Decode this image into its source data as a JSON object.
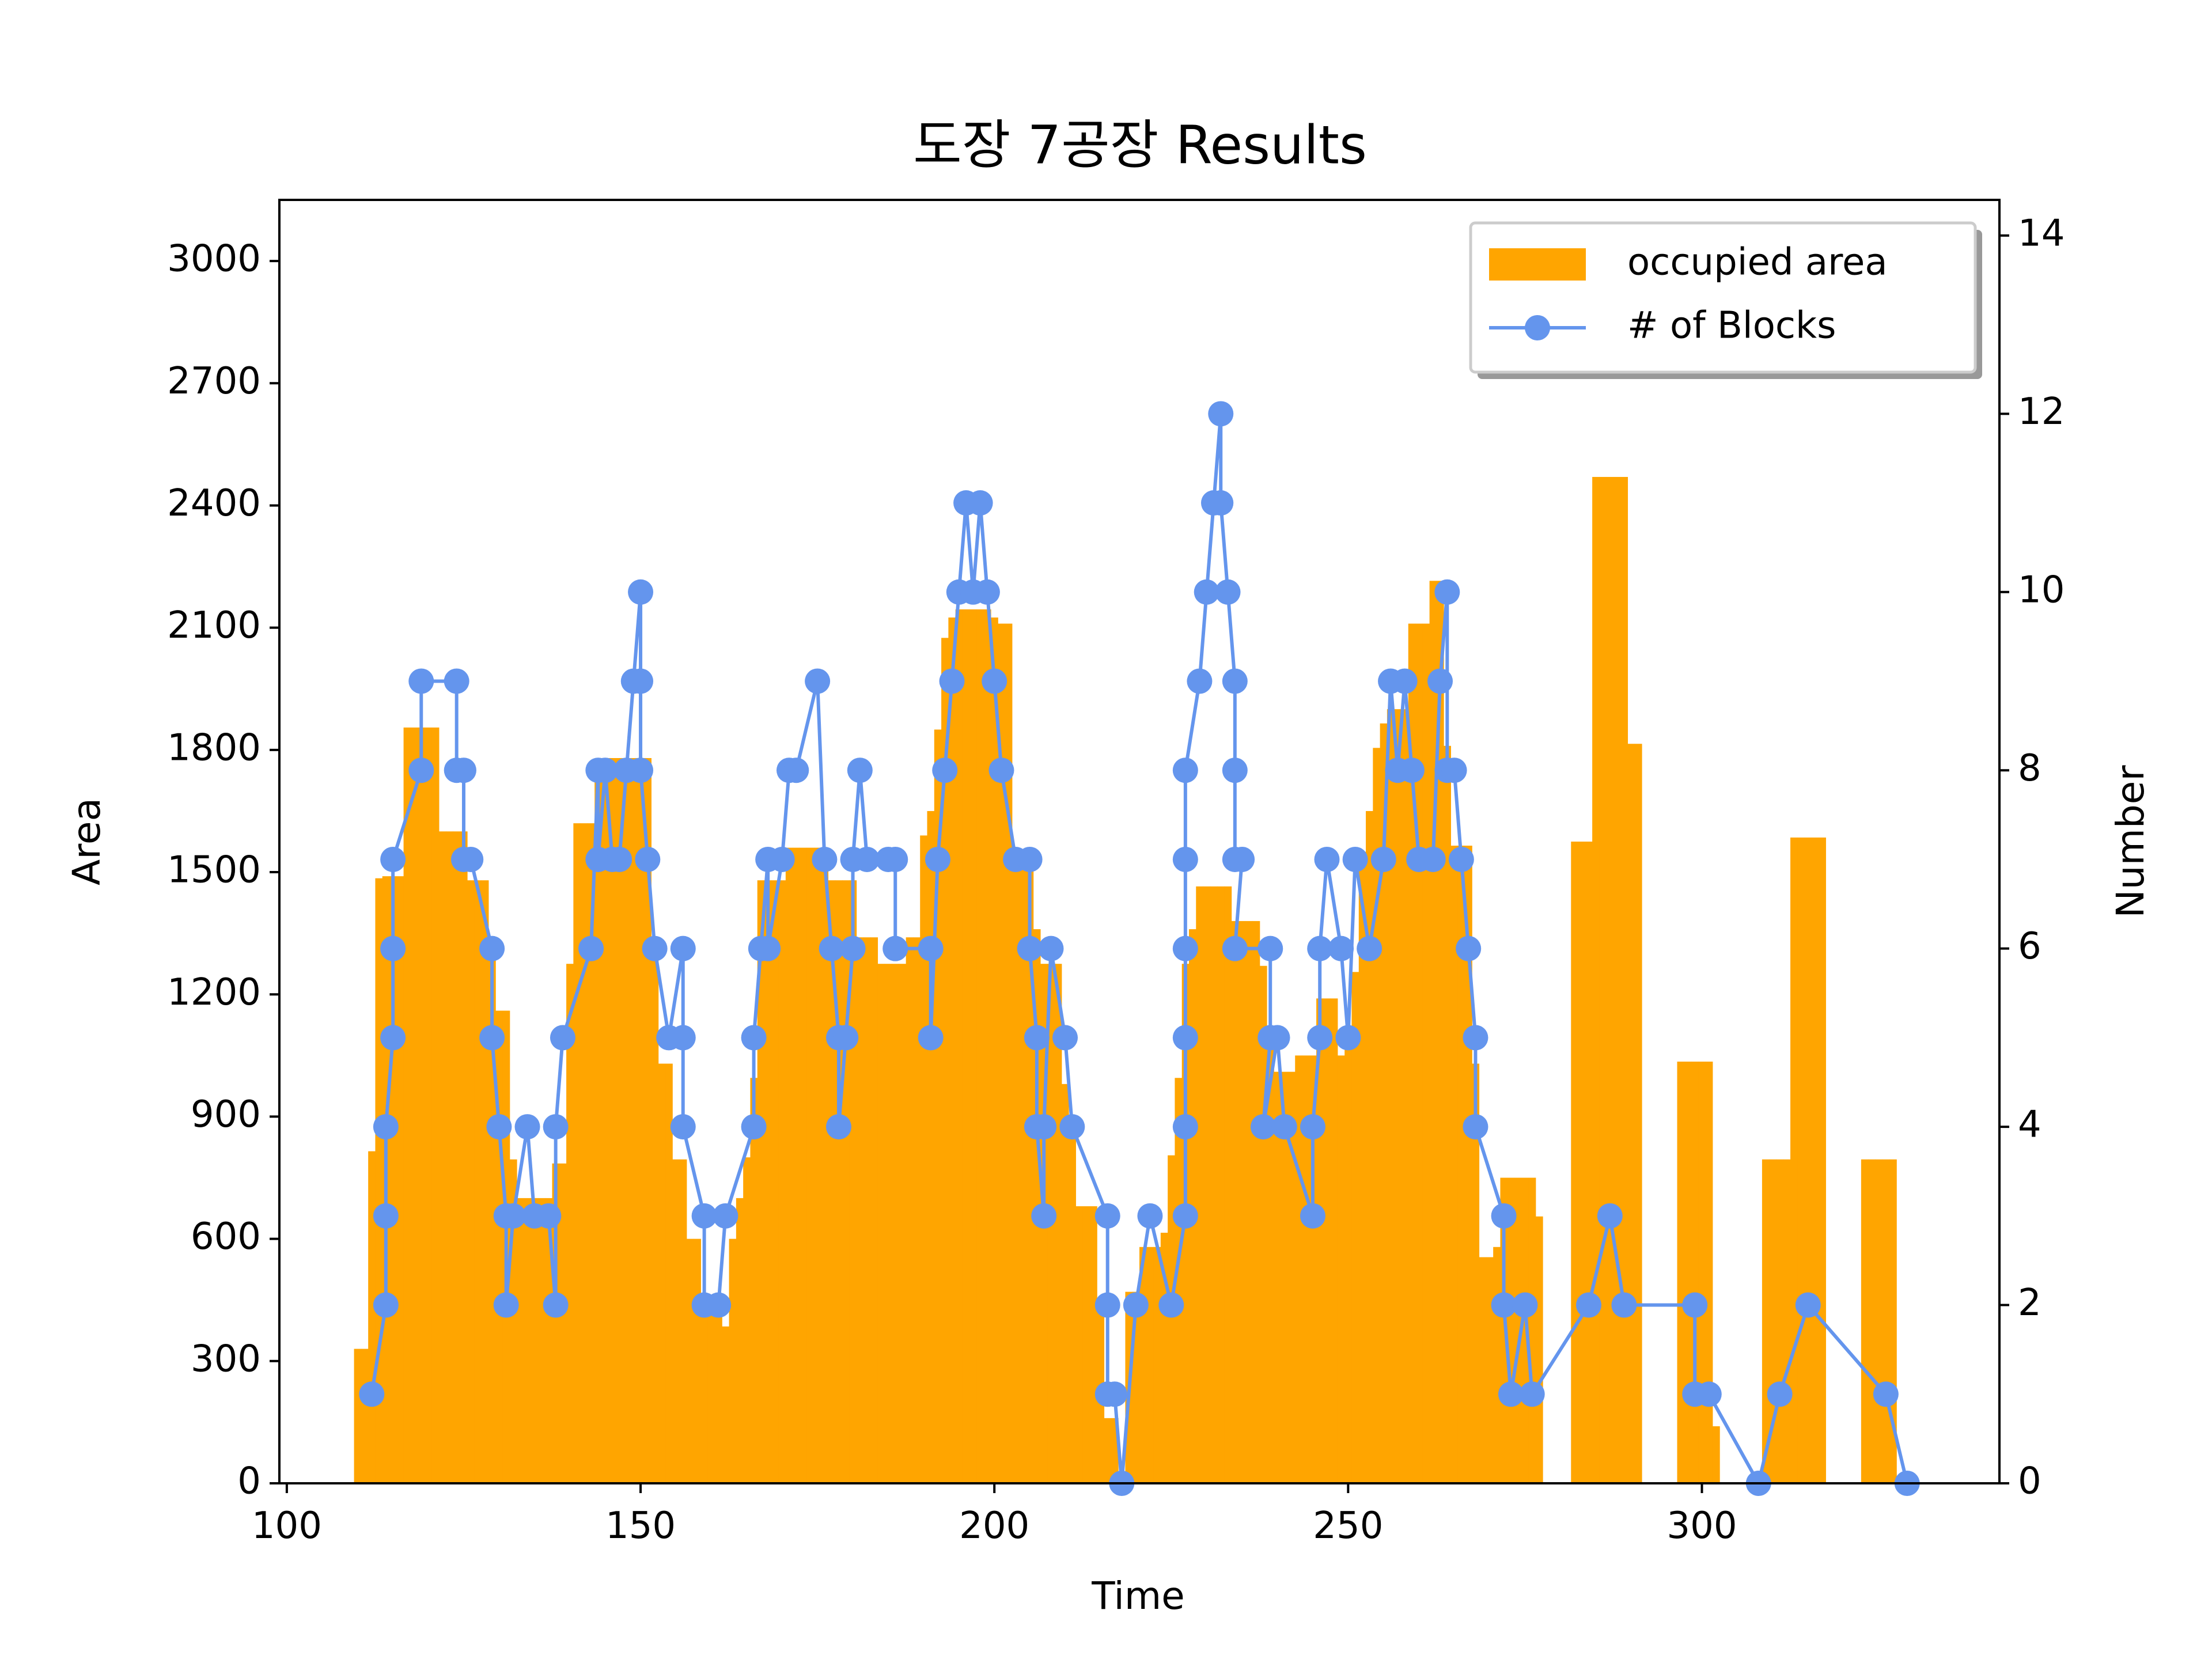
{
  "chart_data": {
    "type": "combo",
    "title": "도장 7공장 Results",
    "x_label": "Time",
    "y_label": "Area",
    "y2_label": "Number",
    "xlim": [
      98.95,
      342.05
    ],
    "xticks": [
      100,
      150,
      200,
      250,
      300
    ],
    "ylim": [
      0,
      3150
    ],
    "yticks": [
      0,
      300,
      600,
      900,
      1200,
      1500,
      1800,
      2100,
      2400,
      2700,
      3000
    ],
    "y2lim": [
      0,
      14.4
    ],
    "y2ticks": [
      0,
      2,
      4,
      6,
      8,
      10,
      12,
      14
    ],
    "legend": "upper right",
    "series": [
      {
        "name": "occupied area",
        "type": "bar",
        "color": "#ffa500",
        "width": 1,
        "x": [
          110,
          111,
          112,
          113,
          114,
          115,
          116,
          117,
          118,
          119,
          120,
          121,
          122,
          123,
          124,
          125,
          126,
          127,
          128,
          129,
          130,
          131,
          132,
          133,
          134,
          135,
          136,
          137,
          138,
          139,
          140,
          141,
          142,
          143,
          144,
          145,
          146,
          147,
          148,
          149,
          150,
          151,
          152,
          153,
          154,
          155,
          156,
          157,
          158,
          159,
          160,
          161,
          162,
          163,
          164,
          165,
          166,
          167,
          168,
          169,
          170,
          171,
          172,
          173,
          174,
          175,
          176,
          177,
          178,
          179,
          180,
          181,
          182,
          183,
          184,
          185,
          186,
          187,
          188,
          189,
          190,
          191,
          192,
          193,
          194,
          195,
          196,
          197,
          198,
          199,
          200,
          201,
          202,
          203,
          204,
          205,
          206,
          207,
          208,
          209,
          210,
          211,
          212,
          213,
          214,
          215,
          216,
          217,
          218,
          219,
          220,
          221,
          222,
          223,
          224,
          225,
          226,
          227,
          228,
          229,
          230,
          231,
          232,
          233,
          234,
          235,
          236,
          237,
          238,
          239,
          240,
          241,
          242,
          243,
          244,
          245,
          246,
          247,
          248,
          249,
          250,
          251,
          252,
          253,
          254,
          255,
          256,
          257,
          258,
          259,
          260,
          261,
          262,
          263,
          264,
          265,
          266,
          267,
          268,
          269,
          270,
          271,
          272,
          273,
          274,
          275,
          276,
          277,
          282,
          283,
          284,
          285,
          286,
          287,
          288,
          289,
          290,
          291,
          297,
          298,
          299,
          300,
          301,
          302,
          309,
          310,
          311,
          312,
          313,
          314,
          315,
          316,
          317,
          323,
          324,
          325,
          326,
          327
        ],
        "values": [
          330,
          330,
          815,
          1485,
          1490,
          1490,
          1490,
          1855,
          1855,
          1855,
          1855,
          1855,
          1600,
          1600,
          1600,
          1600,
          1480,
          1480,
          1480,
          1300,
          1160,
          1160,
          795,
          700,
          700,
          700,
          700,
          700,
          785,
          785,
          1275,
          1620,
          1620,
          1620,
          1780,
          1780,
          1780,
          1780,
          1780,
          1780,
          1780,
          1780,
          1310,
          1030,
          1030,
          795,
          795,
          600,
          600,
          420,
          420,
          420,
          385,
          600,
          700,
          800,
          995,
          1480,
          1480,
          1480,
          1480,
          1560,
          1560,
          1560,
          1560,
          1560,
          1560,
          1480,
          1480,
          1480,
          1480,
          1340,
          1340,
          1340,
          1275,
          1275,
          1275,
          1275,
          1340,
          1340,
          1590,
          1650,
          1850,
          2075,
          2125,
          2145,
          2145,
          2145,
          2145,
          2145,
          2125,
          2110,
          2110,
          1550,
          1550,
          1550,
          1360,
          1275,
          1275,
          1275,
          980,
          855,
          680,
          680,
          680,
          440,
          160,
          160,
          0,
          470,
          470,
          580,
          580,
          580,
          615,
          805,
          995,
          1275,
          1360,
          1465,
          1465,
          1465,
          1465,
          1465,
          1380,
          1380,
          1380,
          1380,
          1270,
          1100,
          1010,
          1010,
          1010,
          1050,
          1050,
          1050,
          1190,
          1190,
          1190,
          1050,
          1080,
          1255,
          1550,
          1650,
          1805,
          1865,
          1900,
          1900,
          1900,
          2110,
          2110,
          2110,
          2215,
          2215,
          1810,
          1565,
          1565,
          1565,
          1030,
          555,
          555,
          580,
          750,
          750,
          750,
          750,
          750,
          655,
          1575,
          1575,
          1575,
          2470,
          2470,
          2470,
          2470,
          2470,
          1815,
          1815,
          1035,
          1035,
          1035,
          1035,
          1035,
          140,
          795,
          795,
          795,
          795,
          1585,
          1585,
          1585,
          1585,
          1585,
          795,
          795,
          795,
          795,
          795
        ]
      },
      {
        "name": "# of Blocks",
        "type": "line",
        "axis": "y2",
        "color": "#6495ed",
        "x": [
          112,
          114,
          114,
          114,
          115,
          115,
          115,
          119,
          119,
          124,
          124,
          125,
          125,
          126,
          129,
          129,
          130,
          131,
          131,
          132,
          134,
          135,
          137,
          138,
          138,
          139,
          143,
          144,
          144,
          145,
          146,
          147,
          148,
          149,
          150,
          150,
          150,
          151,
          152,
          154,
          156,
          156,
          156,
          159,
          159,
          161,
          162,
          166,
          166,
          167,
          168,
          168,
          170,
          171,
          172,
          175,
          176,
          177,
          178,
          178,
          179,
          180,
          180,
          181,
          182,
          185,
          186,
          186,
          191,
          191,
          192,
          193,
          194,
          195,
          196,
          197,
          198,
          199,
          200,
          201,
          203,
          205,
          205,
          206,
          206,
          207,
          207,
          208,
          210,
          211,
          216,
          216,
          216,
          217,
          218,
          220,
          222,
          225,
          227,
          227,
          227,
          227,
          227,
          227,
          229,
          230,
          231,
          232,
          232,
          233,
          234,
          234,
          234,
          235,
          234,
          239,
          239,
          238,
          240,
          241,
          245,
          245,
          246,
          246,
          247,
          249,
          250,
          251,
          253,
          255,
          256,
          257,
          258,
          259,
          260,
          262,
          263,
          264,
          264,
          265,
          266,
          267,
          268,
          268,
          272,
          272,
          273,
          275,
          276,
          284,
          287,
          289,
          299,
          299,
          301,
          308,
          311,
          315,
          326,
          329
        ],
        "values": [
          1,
          2,
          3,
          4,
          5,
          6,
          7,
          8,
          9,
          9,
          8,
          8,
          7,
          7,
          6,
          5,
          4,
          3,
          2,
          3,
          4,
          3,
          3,
          2,
          4,
          5,
          6,
          8,
          7,
          8,
          7,
          7,
          8,
          9,
          10,
          9,
          8,
          7,
          6,
          5,
          6,
          5,
          4,
          3,
          2,
          2,
          3,
          4,
          5,
          6,
          7,
          6,
          7,
          8,
          8,
          9,
          7,
          6,
          5,
          4,
          5,
          6,
          7,
          8,
          7,
          7,
          7,
          6,
          6,
          5,
          7,
          8,
          9,
          10,
          11,
          10,
          11,
          10,
          9,
          8,
          7,
          7,
          6,
          5,
          4,
          3,
          4,
          6,
          5,
          4,
          3,
          2,
          1,
          1,
          0,
          2,
          3,
          2,
          3,
          4,
          5,
          6,
          7,
          8,
          9,
          10,
          11,
          12,
          11,
          10,
          9,
          8,
          7,
          7,
          6,
          6,
          5,
          4,
          5,
          4,
          3,
          4,
          5,
          6,
          7,
          6,
          5,
          7,
          6,
          7,
          9,
          8,
          9,
          8,
          7,
          7,
          9,
          10,
          8,
          8,
          7,
          6,
          5,
          4,
          3,
          2,
          1,
          2,
          1,
          2,
          3,
          2,
          2,
          1,
          1,
          0,
          1,
          2,
          1,
          0
        ]
      }
    ]
  }
}
